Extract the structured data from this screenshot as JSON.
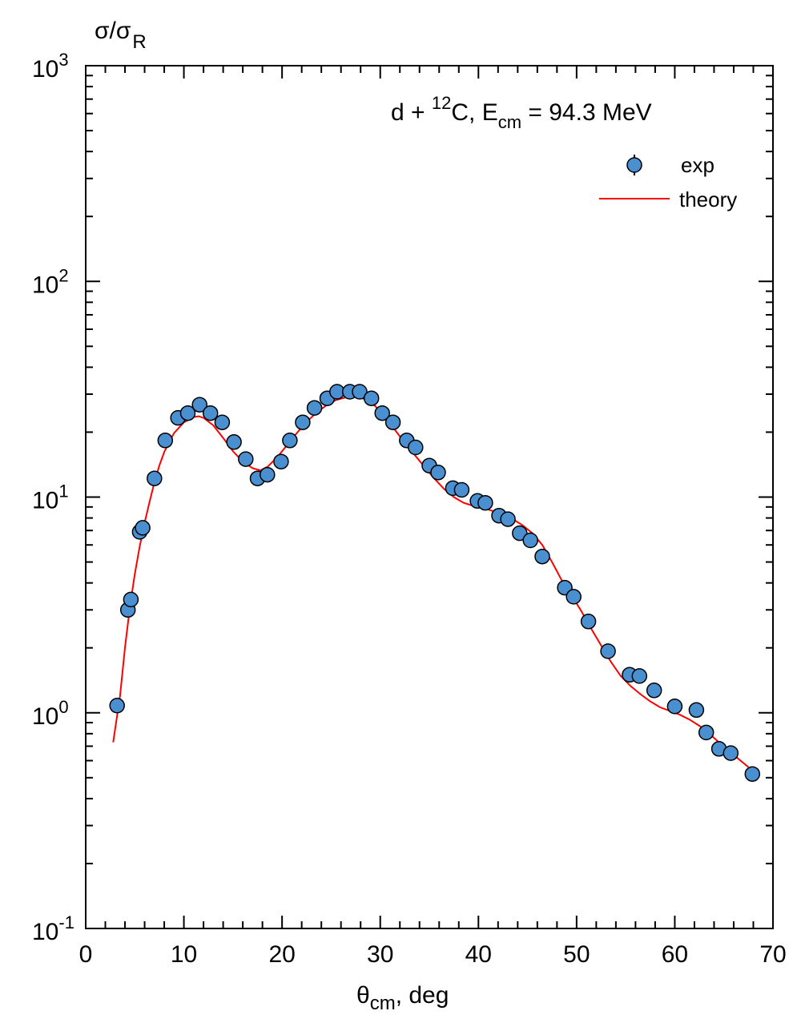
{
  "chart_data": {
    "type": "scatter",
    "title": {
      "prefix": "d + ",
      "mass_number": "12",
      "element": "C, E",
      "energy_sub": "cm",
      "suffix": " = 94.3 MeV"
    },
    "ylabel": {
      "main": "σ/σ",
      "sub": "R"
    },
    "xlabel": {
      "main": "θ",
      "sub": "cm",
      "suffix": ", deg"
    },
    "x_range": [
      0,
      70
    ],
    "y_range": [
      0.1,
      1000
    ],
    "y_scale": "log",
    "x_ticks": [
      0,
      10,
      20,
      30,
      40,
      50,
      60,
      70
    ],
    "y_ticks": [
      {
        "base": "10",
        "exp": "-1",
        "value": 0.1
      },
      {
        "base": "10",
        "exp": "0",
        "value": 1
      },
      {
        "base": "10",
        "exp": "1",
        "value": 10
      },
      {
        "base": "10",
        "exp": "2",
        "value": 100
      },
      {
        "base": "10",
        "exp": "3",
        "value": 1000
      }
    ],
    "grid": false,
    "legend_position": "top-right",
    "series": [
      {
        "name": "exp",
        "kind": "points",
        "color": "#4a90d0",
        "points": [
          [
            3.2,
            1.08
          ],
          [
            4.3,
            3.0
          ],
          [
            4.6,
            3.35
          ],
          [
            5.5,
            6.9
          ],
          [
            5.8,
            7.2
          ],
          [
            7.0,
            12.2
          ],
          [
            8.1,
            18.3
          ],
          [
            9.4,
            23.3
          ],
          [
            10.4,
            24.5
          ],
          [
            11.6,
            26.8
          ],
          [
            12.7,
            24.5
          ],
          [
            13.9,
            22.2
          ],
          [
            15.1,
            18.0
          ],
          [
            16.3,
            15.0
          ],
          [
            17.5,
            12.2
          ],
          [
            18.5,
            12.7
          ],
          [
            19.9,
            14.6
          ],
          [
            20.8,
            18.3
          ],
          [
            22.1,
            22.2
          ],
          [
            23.3,
            25.9
          ],
          [
            24.6,
            28.7
          ],
          [
            25.6,
            30.8
          ],
          [
            26.9,
            30.8
          ],
          [
            27.9,
            30.8
          ],
          [
            29.1,
            28.7
          ],
          [
            30.2,
            24.5
          ],
          [
            31.3,
            22.2
          ],
          [
            32.7,
            18.3
          ],
          [
            33.6,
            17.0
          ],
          [
            35.0,
            14.0
          ],
          [
            35.9,
            13.0
          ],
          [
            37.4,
            11.0
          ],
          [
            38.3,
            10.8
          ],
          [
            39.9,
            9.6
          ],
          [
            40.7,
            9.4
          ],
          [
            42.1,
            8.2
          ],
          [
            43.0,
            7.9
          ],
          [
            44.2,
            6.8
          ],
          [
            45.3,
            6.3
          ],
          [
            46.5,
            5.3
          ],
          [
            48.8,
            3.8
          ],
          [
            49.7,
            3.45
          ],
          [
            51.2,
            2.65
          ],
          [
            53.2,
            1.93
          ],
          [
            55.4,
            1.5
          ],
          [
            56.4,
            1.48
          ],
          [
            57.9,
            1.27
          ],
          [
            60.0,
            1.07
          ],
          [
            62.2,
            1.03
          ],
          [
            63.2,
            0.81
          ],
          [
            64.5,
            0.68
          ],
          [
            65.7,
            0.65
          ],
          [
            67.9,
            0.52
          ]
        ]
      },
      {
        "name": "theory",
        "kind": "line",
        "color": "#ff0000",
        "points": [
          [
            2.8,
            0.73
          ],
          [
            3.5,
            1.2
          ],
          [
            4.0,
            2.0
          ],
          [
            4.5,
            3.1
          ],
          [
            5.0,
            4.4
          ],
          [
            5.5,
            5.9
          ],
          [
            6.0,
            7.6
          ],
          [
            6.5,
            9.5
          ],
          [
            7.0,
            11.7
          ],
          [
            7.5,
            14.0
          ],
          [
            8.0,
            16.2
          ],
          [
            9.0,
            19.8
          ],
          [
            10.0,
            22.2
          ],
          [
            11.0,
            23.5
          ],
          [
            11.5,
            23.7
          ],
          [
            12.0,
            23.3
          ],
          [
            13.0,
            21.5
          ],
          [
            14.0,
            18.8
          ],
          [
            15.0,
            16.3
          ],
          [
            16.0,
            14.6
          ],
          [
            17.0,
            13.6
          ],
          [
            17.8,
            13.3
          ],
          [
            18.5,
            13.8
          ],
          [
            19.5,
            15.3
          ],
          [
            20.5,
            17.4
          ],
          [
            21.5,
            19.8
          ],
          [
            22.5,
            22.3
          ],
          [
            23.5,
            24.6
          ],
          [
            24.5,
            26.6
          ],
          [
            25.5,
            28.2
          ],
          [
            26.5,
            29.0
          ],
          [
            27.5,
            29.2
          ],
          [
            28.5,
            28.4
          ],
          [
            29.5,
            26.4
          ],
          [
            30.5,
            23.4
          ],
          [
            31.5,
            20.5
          ],
          [
            32.5,
            17.8
          ],
          [
            33.5,
            15.7
          ],
          [
            34.5,
            13.8
          ],
          [
            35.5,
            12.2
          ],
          [
            36.5,
            10.9
          ],
          [
            37.5,
            10.0
          ],
          [
            38.5,
            9.4
          ],
          [
            39.5,
            9.1
          ],
          [
            40.5,
            8.9
          ],
          [
            41.5,
            8.6
          ],
          [
            42.5,
            8.3
          ],
          [
            43.5,
            7.9
          ],
          [
            44.5,
            7.4
          ],
          [
            45.5,
            6.8
          ],
          [
            46.5,
            6.0
          ],
          [
            47.5,
            5.0
          ],
          [
            48.5,
            4.1
          ],
          [
            49.5,
            3.5
          ],
          [
            50.5,
            2.95
          ],
          [
            51.5,
            2.45
          ],
          [
            52.5,
            2.05
          ],
          [
            53.5,
            1.72
          ],
          [
            54.5,
            1.48
          ],
          [
            55.5,
            1.33
          ],
          [
            56.5,
            1.22
          ],
          [
            57.5,
            1.13
          ],
          [
            58.5,
            1.06
          ],
          [
            59.5,
            1.02
          ],
          [
            60.5,
            0.98
          ],
          [
            61.5,
            0.93
          ],
          [
            62.5,
            0.87
          ],
          [
            63.5,
            0.8
          ],
          [
            64.5,
            0.73
          ],
          [
            65.5,
            0.67
          ],
          [
            66.5,
            0.61
          ],
          [
            67.5,
            0.56
          ]
        ]
      }
    ]
  }
}
